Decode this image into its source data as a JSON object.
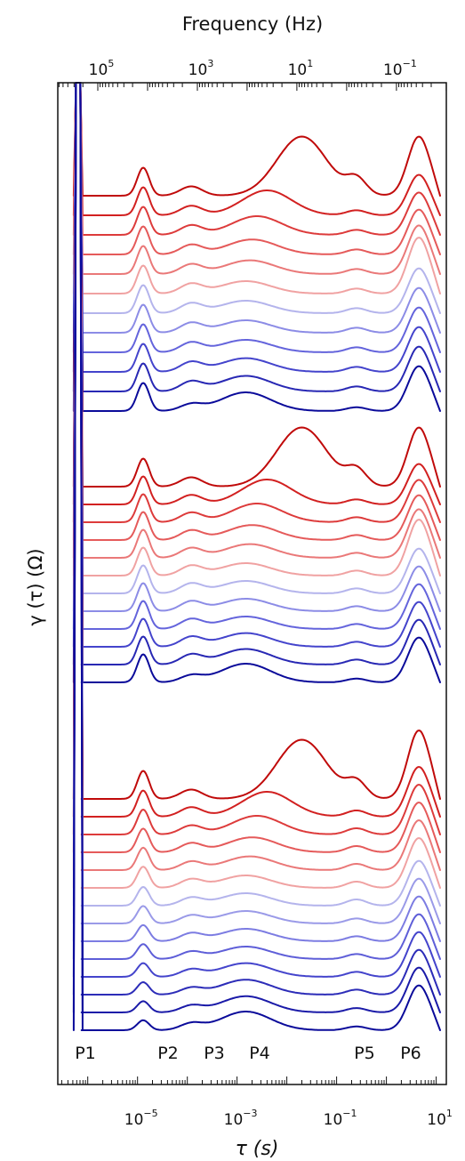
{
  "chart_data": {
    "type": "line",
    "top_axis": {
      "label": "Frequency (Hz)",
      "scale": "log",
      "range_hz": [
        4000000,
        0.006
      ],
      "tick_labels": [
        {
          "base": "10",
          "exp": "5",
          "value": 100000
        },
        {
          "base": "10",
          "exp": "3",
          "value": 1000
        },
        {
          "base": "10",
          "exp": "1",
          "value": 10
        },
        {
          "base": "10",
          "exp": "−1",
          "value": 0.1
        }
      ]
    },
    "x_axis": {
      "label": "τ (s)",
      "scale": "log",
      "range_s": [
        2.5e-07,
        16
      ],
      "tick_labels": [
        {
          "base": "10",
          "exp": "−5",
          "value": 1e-05
        },
        {
          "base": "10",
          "exp": "−3",
          "value": 0.001
        },
        {
          "base": "10",
          "exp": "−1",
          "value": 0.1
        },
        {
          "base": "10",
          "exp": "1",
          "value": 10
        }
      ]
    },
    "y_axis": {
      "label": "γ (τ) (Ω)",
      "ticks": "none",
      "offset_stacked": true
    },
    "peaks": [
      {
        "label": "P1",
        "tau_s": 6.4e-07
      },
      {
        "label": "P2",
        "tau_s": 1.3e-05
      },
      {
        "label": "P3",
        "tau_s": 0.00012
      },
      {
        "label": "P4",
        "tau_s": 0.001
      },
      {
        "label": "P5",
        "tau_s": 0.25
      },
      {
        "label": "P6",
        "tau_s": 4.5
      }
    ],
    "color_scale": [
      "#b80000",
      "#dd3333",
      "#ec8080",
      "#f2b8b8",
      "#b4b4ec",
      "#6e6ee0",
      "#3a3ac4",
      "#0a0a9a"
    ],
    "groups": [
      {
        "curve_count": 12,
        "series": [
          {
            "color": "#c00a0a",
            "peaks": {
              "P2": 0.45,
              "P3": 0.15,
              "P4": 0.95,
              "P4_tau_s": 0.02,
              "P5": 0.25,
              "P6": 0.95
            }
          },
          {
            "color": "#d22020",
            "peaks": {
              "P2": 0.45,
              "P3": 0.15,
              "P4": 0.4,
              "P4_tau_s": 0.004,
              "P5": 0.08,
              "P6": 0.65
            }
          },
          {
            "color": "#dd3b3b",
            "peaks": {
              "P2": 0.45,
              "P3": 0.15,
              "P4": 0.3,
              "P4_tau_s": 0.0025,
              "P5": 0.08,
              "P6": 0.68
            }
          },
          {
            "color": "#e55a5a",
            "peaks": {
              "P2": 0.45,
              "P3": 0.15,
              "P4": 0.24,
              "P4_tau_s": 0.002,
              "P5": 0.08,
              "P6": 0.72
            }
          },
          {
            "color": "#ea7878",
            "peaks": {
              "P2": 0.45,
              "P3": 0.15,
              "P4": 0.22,
              "P4_tau_s": 0.0018,
              "P5": 0.08,
              "P6": 0.78
            }
          },
          {
            "color": "#f0a2a2",
            "peaks": {
              "P2": 0.45,
              "P3": 0.15,
              "P4": 0.2,
              "P4_tau_s": 0.0015,
              "P5": 0.08,
              "P6": 0.9
            }
          },
          {
            "color": "#b4b4ec",
            "peaks": {
              "P2": 0.45,
              "P3": 0.15,
              "P4": 0.2,
              "P4_tau_s": 0.0015,
              "P5": 0.08,
              "P6": 0.72
            }
          },
          {
            "color": "#8c8ce6",
            "peaks": {
              "P2": 0.45,
              "P3": 0.15,
              "P4": 0.2,
              "P4_tau_s": 0.0015,
              "P5": 0.08,
              "P6": 0.72
            }
          },
          {
            "color": "#6464dc",
            "peaks": {
              "P2": 0.45,
              "P3": 0.15,
              "P4": 0.2,
              "P4_tau_s": 0.0015,
              "P5": 0.08,
              "P6": 0.72
            }
          },
          {
            "color": "#4444cc",
            "peaks": {
              "P2": 0.45,
              "P3": 0.15,
              "P4": 0.22,
              "P4_tau_s": 0.0015,
              "P5": 0.08,
              "P6": 0.72
            }
          },
          {
            "color": "#2828b4",
            "peaks": {
              "P2": 0.45,
              "P3": 0.15,
              "P4": 0.25,
              "P4_tau_s": 0.0015,
              "P5": 0.08,
              "P6": 0.72
            }
          },
          {
            "color": "#0a0a9a",
            "peaks": {
              "P2": 0.45,
              "P3": 0.1,
              "P4": 0.3,
              "P4_tau_s": 0.0015,
              "P5": 0.06,
              "P6": 0.72
            }
          }
        ]
      },
      {
        "curve_count": 12,
        "series": [
          {
            "color": "#c00a0a",
            "peaks": {
              "P2": 0.45,
              "P3": 0.15,
              "P4": 0.95,
              "P4_tau_s": 0.02,
              "P5": 0.25,
              "P6": 0.95
            }
          },
          {
            "color": "#d22020",
            "peaks": {
              "P2": 0.45,
              "P3": 0.15,
              "P4": 0.4,
              "P4_tau_s": 0.004,
              "P5": 0.08,
              "P6": 0.65
            }
          },
          {
            "color": "#dd3b3b",
            "peaks": {
              "P2": 0.45,
              "P3": 0.15,
              "P4": 0.3,
              "P4_tau_s": 0.0025,
              "P5": 0.08,
              "P6": 0.68
            }
          },
          {
            "color": "#e55a5a",
            "peaks": {
              "P2": 0.45,
              "P3": 0.15,
              "P4": 0.24,
              "P4_tau_s": 0.002,
              "P5": 0.08,
              "P6": 0.72
            }
          },
          {
            "color": "#ea7878",
            "peaks": {
              "P2": 0.45,
              "P3": 0.15,
              "P4": 0.22,
              "P4_tau_s": 0.0018,
              "P5": 0.08,
              "P6": 0.78
            }
          },
          {
            "color": "#f0a2a2",
            "peaks": {
              "P2": 0.45,
              "P3": 0.15,
              "P4": 0.2,
              "P4_tau_s": 0.0015,
              "P5": 0.08,
              "P6": 0.9
            }
          },
          {
            "color": "#b4b4ec",
            "peaks": {
              "P2": 0.45,
              "P3": 0.15,
              "P4": 0.2,
              "P4_tau_s": 0.0015,
              "P5": 0.08,
              "P6": 0.72
            }
          },
          {
            "color": "#8c8ce6",
            "peaks": {
              "P2": 0.45,
              "P3": 0.15,
              "P4": 0.2,
              "P4_tau_s": 0.0015,
              "P5": 0.08,
              "P6": 0.72
            }
          },
          {
            "color": "#6464dc",
            "peaks": {
              "P2": 0.45,
              "P3": 0.15,
              "P4": 0.2,
              "P4_tau_s": 0.0015,
              "P5": 0.08,
              "P6": 0.72
            }
          },
          {
            "color": "#4444cc",
            "peaks": {
              "P2": 0.45,
              "P3": 0.15,
              "P4": 0.22,
              "P4_tau_s": 0.0015,
              "P5": 0.08,
              "P6": 0.72
            }
          },
          {
            "color": "#2828b4",
            "peaks": {
              "P2": 0.45,
              "P3": 0.15,
              "P4": 0.25,
              "P4_tau_s": 0.0015,
              "P5": 0.08,
              "P6": 0.72
            }
          },
          {
            "color": "#0a0a9a",
            "peaks": {
              "P2": 0.45,
              "P3": 0.1,
              "P4": 0.3,
              "P4_tau_s": 0.0015,
              "P5": 0.06,
              "P6": 0.72
            }
          }
        ]
      },
      {
        "curve_count": 14,
        "series": [
          {
            "color": "#c00a0a",
            "peaks": {
              "P2": 0.45,
              "P3": 0.15,
              "P4": 0.95,
              "P4_tau_s": 0.02,
              "P5": 0.25,
              "P6": 1.1
            }
          },
          {
            "color": "#d22020",
            "peaks": {
              "P2": 0.42,
              "P3": 0.15,
              "P4": 0.4,
              "P4_tau_s": 0.004,
              "P5": 0.1,
              "P6": 0.8
            }
          },
          {
            "color": "#dd3b3b",
            "peaks": {
              "P2": 0.4,
              "P3": 0.14,
              "P4": 0.3,
              "P4_tau_s": 0.0025,
              "P5": 0.1,
              "P6": 0.8
            }
          },
          {
            "color": "#e55a5a",
            "peaks": {
              "P2": 0.38,
              "P3": 0.14,
              "P4": 0.24,
              "P4_tau_s": 0.002,
              "P5": 0.1,
              "P6": 0.8
            }
          },
          {
            "color": "#ea7878",
            "peaks": {
              "P2": 0.36,
              "P3": 0.13,
              "P4": 0.22,
              "P4_tau_s": 0.0018,
              "P5": 0.1,
              "P6": 0.8
            }
          },
          {
            "color": "#f0a2a2",
            "peaks": {
              "P2": 0.34,
              "P3": 0.13,
              "P4": 0.2,
              "P4_tau_s": 0.0015,
              "P5": 0.1,
              "P6": 0.8
            }
          },
          {
            "color": "#b4b4ec",
            "peaks": {
              "P2": 0.3,
              "P3": 0.12,
              "P4": 0.2,
              "P4_tau_s": 0.0015,
              "P5": 0.1,
              "P6": 0.72
            }
          },
          {
            "color": "#9a9ae8",
            "peaks": {
              "P2": 0.28,
              "P3": 0.12,
              "P4": 0.2,
              "P4_tau_s": 0.0015,
              "P5": 0.08,
              "P6": 0.72
            }
          },
          {
            "color": "#7c7ce2",
            "peaks": {
              "P2": 0.26,
              "P3": 0.12,
              "P4": 0.2,
              "P4_tau_s": 0.0015,
              "P5": 0.08,
              "P6": 0.72
            }
          },
          {
            "color": "#5e5ed8",
            "peaks": {
              "P2": 0.24,
              "P3": 0.11,
              "P4": 0.2,
              "P4_tau_s": 0.0015,
              "P5": 0.08,
              "P6": 0.72
            }
          },
          {
            "color": "#4444cc",
            "peaks": {
              "P2": 0.22,
              "P3": 0.11,
              "P4": 0.22,
              "P4_tau_s": 0.0015,
              "P5": 0.08,
              "P6": 0.72
            }
          },
          {
            "color": "#2c2cb8",
            "peaks": {
              "P2": 0.2,
              "P3": 0.1,
              "P4": 0.24,
              "P4_tau_s": 0.0015,
              "P5": 0.08,
              "P6": 0.72
            }
          },
          {
            "color": "#1a1aa8",
            "peaks": {
              "P2": 0.18,
              "P3": 0.1,
              "P4": 0.26,
              "P4_tau_s": 0.0015,
              "P5": 0.07,
              "P6": 0.72
            }
          },
          {
            "color": "#0a0a9a",
            "peaks": {
              "P2": 0.16,
              "P3": 0.1,
              "P4": 0.3,
              "P4_tau_s": 0.0015,
              "P5": 0.06,
              "P6": 0.72
            }
          }
        ]
      }
    ]
  }
}
